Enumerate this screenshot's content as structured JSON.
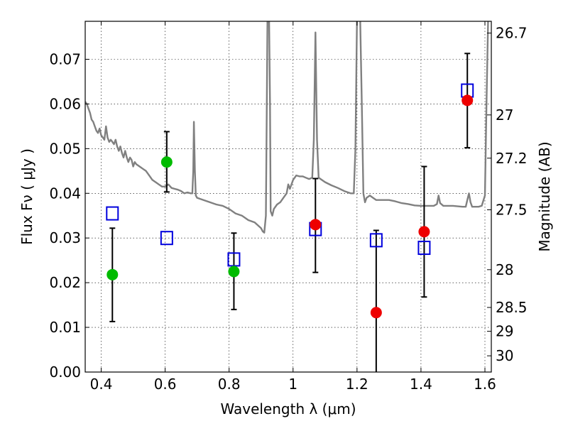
{
  "chart_data": {
    "type": "scatter",
    "xlabel": "Wavelength  λ (μm)",
    "ylabel": "Flux  Fν  ( μJy )",
    "y2label": "Magnitude (AB)",
    "xlim": [
      0.35,
      1.62
    ],
    "ylim": [
      0.0,
      0.0785
    ],
    "xticks": [
      {
        "v": 0.4,
        "label": "0.4"
      },
      {
        "v": 0.6,
        "label": "0.6"
      },
      {
        "v": 0.8,
        "label": "0.8"
      },
      {
        "v": 1.0,
        "label": "1"
      },
      {
        "v": 1.2,
        "label": "1.2"
      },
      {
        "v": 1.4,
        "label": "1.4"
      },
      {
        "v": 1.6,
        "label": "1.6"
      }
    ],
    "yticks": [
      {
        "v": 0.0,
        "label": "0.00"
      },
      {
        "v": 0.01,
        "label": "0.01"
      },
      {
        "v": 0.02,
        "label": "0.02"
      },
      {
        "v": 0.03,
        "label": "0.03"
      },
      {
        "v": 0.04,
        "label": "0.04"
      },
      {
        "v": 0.05,
        "label": "0.05"
      },
      {
        "v": 0.06,
        "label": "0.06"
      },
      {
        "v": 0.07,
        "label": "0.07"
      }
    ],
    "y2ticks": [
      {
        "mag": 26.7,
        "label": "26.7"
      },
      {
        "mag": 27,
        "label": "27"
      },
      {
        "mag": 27.2,
        "label": "27.2"
      },
      {
        "mag": 27.5,
        "label": "27.5"
      },
      {
        "mag": 28,
        "label": "28"
      },
      {
        "mag": 28.5,
        "label": "28.5"
      },
      {
        "mag": 29,
        "label": "29"
      },
      {
        "mag": 30,
        "label": "30"
      }
    ],
    "grid": true,
    "series": [
      {
        "kind": "line",
        "color": "#808080",
        "points": [
          [
            0.35,
            0.0605
          ],
          [
            0.355,
            0.06
          ],
          [
            0.36,
            0.059
          ],
          [
            0.365,
            0.058
          ],
          [
            0.37,
            0.0565
          ],
          [
            0.375,
            0.056
          ],
          [
            0.38,
            0.055
          ],
          [
            0.385,
            0.054
          ],
          [
            0.39,
            0.0535
          ],
          [
            0.395,
            0.0545
          ],
          [
            0.4,
            0.053
          ],
          [
            0.405,
            0.0525
          ],
          [
            0.41,
            0.052
          ],
          [
            0.415,
            0.055
          ],
          [
            0.42,
            0.0525
          ],
          [
            0.425,
            0.0515
          ],
          [
            0.43,
            0.052
          ],
          [
            0.435,
            0.0515
          ],
          [
            0.44,
            0.051
          ],
          [
            0.445,
            0.052
          ],
          [
            0.45,
            0.0505
          ],
          [
            0.455,
            0.0495
          ],
          [
            0.46,
            0.0505
          ],
          [
            0.465,
            0.049
          ],
          [
            0.47,
            0.048
          ],
          [
            0.475,
            0.0495
          ],
          [
            0.48,
            0.048
          ],
          [
            0.485,
            0.047
          ],
          [
            0.49,
            0.048
          ],
          [
            0.495,
            0.0475
          ],
          [
            0.5,
            0.046
          ],
          [
            0.505,
            0.047
          ],
          [
            0.51,
            0.0465
          ],
          [
            0.52,
            0.046
          ],
          [
            0.53,
            0.0455
          ],
          [
            0.54,
            0.045
          ],
          [
            0.55,
            0.044
          ],
          [
            0.56,
            0.043
          ],
          [
            0.57,
            0.0425
          ],
          [
            0.58,
            0.042
          ],
          [
            0.59,
            0.0415
          ],
          [
            0.6,
            0.0415
          ],
          [
            0.61,
            0.042
          ],
          [
            0.62,
            0.0412
          ],
          [
            0.63,
            0.041
          ],
          [
            0.64,
            0.0408
          ],
          [
            0.65,
            0.0405
          ],
          [
            0.66,
            0.04
          ],
          [
            0.67,
            0.0402
          ],
          [
            0.68,
            0.04
          ],
          [
            0.685,
            0.04
          ],
          [
            0.688,
            0.045
          ],
          [
            0.69,
            0.056
          ],
          [
            0.693,
            0.045
          ],
          [
            0.696,
            0.0395
          ],
          [
            0.7,
            0.039
          ],
          [
            0.72,
            0.0385
          ],
          [
            0.74,
            0.038
          ],
          [
            0.76,
            0.0375
          ],
          [
            0.78,
            0.0372
          ],
          [
            0.8,
            0.0365
          ],
          [
            0.82,
            0.0355
          ],
          [
            0.84,
            0.035
          ],
          [
            0.86,
            0.034
          ],
          [
            0.88,
            0.0335
          ],
          [
            0.9,
            0.0322
          ],
          [
            0.905,
            0.0315
          ],
          [
            0.91,
            0.0312
          ],
          [
            0.915,
            0.035
          ],
          [
            0.918,
            0.06
          ],
          [
            0.92,
            0.079
          ],
          [
            0.925,
            0.079
          ],
          [
            0.928,
            0.06
          ],
          [
            0.93,
            0.036
          ],
          [
            0.935,
            0.035
          ],
          [
            0.94,
            0.0365
          ],
          [
            0.95,
            0.0375
          ],
          [
            0.96,
            0.038
          ],
          [
            0.97,
            0.039
          ],
          [
            0.98,
            0.04
          ],
          [
            0.985,
            0.042
          ],
          [
            0.99,
            0.041
          ],
          [
            1.0,
            0.043
          ],
          [
            1.01,
            0.044
          ],
          [
            1.02,
            0.0438
          ],
          [
            1.03,
            0.0438
          ],
          [
            1.04,
            0.0435
          ],
          [
            1.05,
            0.0432
          ],
          [
            1.06,
            0.0435
          ],
          [
            1.065,
            0.052
          ],
          [
            1.07,
            0.076
          ],
          [
            1.075,
            0.052
          ],
          [
            1.08,
            0.0435
          ],
          [
            1.09,
            0.043
          ],
          [
            1.1,
            0.0425
          ],
          [
            1.12,
            0.0418
          ],
          [
            1.14,
            0.0412
          ],
          [
            1.16,
            0.0405
          ],
          [
            1.18,
            0.04
          ],
          [
            1.19,
            0.04
          ],
          [
            1.195,
            0.05
          ],
          [
            1.2,
            0.079
          ],
          [
            1.21,
            0.079
          ],
          [
            1.215,
            0.06
          ],
          [
            1.22,
            0.04
          ],
          [
            1.225,
            0.038
          ],
          [
            1.23,
            0.039
          ],
          [
            1.24,
            0.0395
          ],
          [
            1.25,
            0.039
          ],
          [
            1.26,
            0.0385
          ],
          [
            1.28,
            0.0385
          ],
          [
            1.3,
            0.0385
          ],
          [
            1.32,
            0.0382
          ],
          [
            1.34,
            0.0378
          ],
          [
            1.36,
            0.0376
          ],
          [
            1.38,
            0.0373
          ],
          [
            1.4,
            0.0372
          ],
          [
            1.42,
            0.0372
          ],
          [
            1.44,
            0.0372
          ],
          [
            1.45,
            0.0376
          ],
          [
            1.455,
            0.0395
          ],
          [
            1.46,
            0.0378
          ],
          [
            1.47,
            0.0372
          ],
          [
            1.5,
            0.0372
          ],
          [
            1.53,
            0.037
          ],
          [
            1.54,
            0.037
          ],
          [
            1.545,
            0.0385
          ],
          [
            1.55,
            0.04
          ],
          [
            1.555,
            0.038
          ],
          [
            1.56,
            0.037
          ],
          [
            1.58,
            0.037
          ],
          [
            1.59,
            0.0372
          ],
          [
            1.6,
            0.0395
          ],
          [
            1.605,
            0.06
          ],
          [
            1.61,
            0.079
          ]
        ]
      },
      {
        "kind": "marker",
        "shape": "square-open",
        "color": "#0000dd",
        "points": [
          [
            0.435,
            0.0355
          ],
          [
            0.605,
            0.03
          ],
          [
            0.815,
            0.0252
          ],
          [
            1.07,
            0.032
          ],
          [
            1.26,
            0.0295
          ],
          [
            1.41,
            0.0278
          ],
          [
            1.545,
            0.063
          ]
        ]
      },
      {
        "kind": "marker",
        "shape": "circle",
        "color": "#00bb00",
        "points": [
          [
            0.435,
            0.0218
          ],
          [
            0.605,
            0.047
          ],
          [
            0.815,
            0.0225
          ]
        ]
      },
      {
        "kind": "marker",
        "shape": "circle",
        "color": "#ee0000",
        "points": [
          [
            1.07,
            0.033
          ],
          [
            1.26,
            0.0133
          ],
          [
            1.41,
            0.0314
          ],
          [
            1.545,
            0.0608
          ]
        ]
      },
      {
        "kind": "errorbar",
        "color": "#000000",
        "points": [
          {
            "x": 0.435,
            "y": 0.0218,
            "lo": 0.0113,
            "hi": 0.0322
          },
          {
            "x": 0.605,
            "y": 0.047,
            "lo": 0.0403,
            "hi": 0.0538
          },
          {
            "x": 0.815,
            "y": 0.0225,
            "lo": 0.014,
            "hi": 0.0311
          },
          {
            "x": 1.07,
            "y": 0.033,
            "lo": 0.0223,
            "hi": 0.0433
          },
          {
            "x": 1.26,
            "y": 0.0133,
            "lo": 0.0,
            "hi": 0.0317
          },
          {
            "x": 1.41,
            "y": 0.0314,
            "lo": 0.0168,
            "hi": 0.046
          },
          {
            "x": 1.545,
            "y": 0.0608,
            "lo": 0.0502,
            "hi": 0.0713
          }
        ]
      }
    ]
  }
}
